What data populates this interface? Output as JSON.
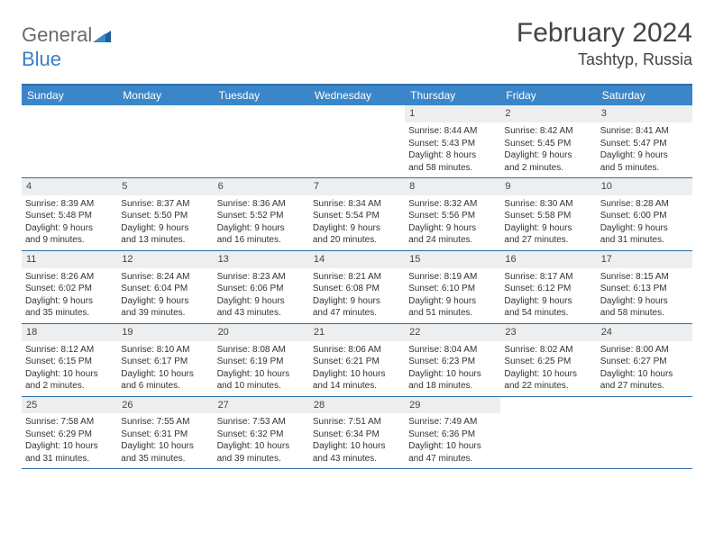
{
  "brand": {
    "name_gray": "General",
    "name_blue": "Blue"
  },
  "title": "February 2024",
  "location": "Tashtyp, Russia",
  "colors": {
    "header_bg": "#3a86c8",
    "border": "#2f6fa8",
    "daynum_bg": "#eceef0",
    "text": "#333333",
    "logo_gray": "#6a6a6a",
    "logo_blue": "#3a7fc4",
    "page_bg": "#ffffff"
  },
  "day_labels": [
    "Sunday",
    "Monday",
    "Tuesday",
    "Wednesday",
    "Thursday",
    "Friday",
    "Saturday"
  ],
  "weeks": [
    [
      {
        "empty": true
      },
      {
        "empty": true
      },
      {
        "empty": true
      },
      {
        "empty": true
      },
      {
        "n": "1",
        "sr": "Sunrise: 8:44 AM",
        "ss": "Sunset: 5:43 PM",
        "d1": "Daylight: 8 hours",
        "d2": "and 58 minutes."
      },
      {
        "n": "2",
        "sr": "Sunrise: 8:42 AM",
        "ss": "Sunset: 5:45 PM",
        "d1": "Daylight: 9 hours",
        "d2": "and 2 minutes."
      },
      {
        "n": "3",
        "sr": "Sunrise: 8:41 AM",
        "ss": "Sunset: 5:47 PM",
        "d1": "Daylight: 9 hours",
        "d2": "and 5 minutes."
      }
    ],
    [
      {
        "n": "4",
        "sr": "Sunrise: 8:39 AM",
        "ss": "Sunset: 5:48 PM",
        "d1": "Daylight: 9 hours",
        "d2": "and 9 minutes."
      },
      {
        "n": "5",
        "sr": "Sunrise: 8:37 AM",
        "ss": "Sunset: 5:50 PM",
        "d1": "Daylight: 9 hours",
        "d2": "and 13 minutes."
      },
      {
        "n": "6",
        "sr": "Sunrise: 8:36 AM",
        "ss": "Sunset: 5:52 PM",
        "d1": "Daylight: 9 hours",
        "d2": "and 16 minutes."
      },
      {
        "n": "7",
        "sr": "Sunrise: 8:34 AM",
        "ss": "Sunset: 5:54 PM",
        "d1": "Daylight: 9 hours",
        "d2": "and 20 minutes."
      },
      {
        "n": "8",
        "sr": "Sunrise: 8:32 AM",
        "ss": "Sunset: 5:56 PM",
        "d1": "Daylight: 9 hours",
        "d2": "and 24 minutes."
      },
      {
        "n": "9",
        "sr": "Sunrise: 8:30 AM",
        "ss": "Sunset: 5:58 PM",
        "d1": "Daylight: 9 hours",
        "d2": "and 27 minutes."
      },
      {
        "n": "10",
        "sr": "Sunrise: 8:28 AM",
        "ss": "Sunset: 6:00 PM",
        "d1": "Daylight: 9 hours",
        "d2": "and 31 minutes."
      }
    ],
    [
      {
        "n": "11",
        "sr": "Sunrise: 8:26 AM",
        "ss": "Sunset: 6:02 PM",
        "d1": "Daylight: 9 hours",
        "d2": "and 35 minutes."
      },
      {
        "n": "12",
        "sr": "Sunrise: 8:24 AM",
        "ss": "Sunset: 6:04 PM",
        "d1": "Daylight: 9 hours",
        "d2": "and 39 minutes."
      },
      {
        "n": "13",
        "sr": "Sunrise: 8:23 AM",
        "ss": "Sunset: 6:06 PM",
        "d1": "Daylight: 9 hours",
        "d2": "and 43 minutes."
      },
      {
        "n": "14",
        "sr": "Sunrise: 8:21 AM",
        "ss": "Sunset: 6:08 PM",
        "d1": "Daylight: 9 hours",
        "d2": "and 47 minutes."
      },
      {
        "n": "15",
        "sr": "Sunrise: 8:19 AM",
        "ss": "Sunset: 6:10 PM",
        "d1": "Daylight: 9 hours",
        "d2": "and 51 minutes."
      },
      {
        "n": "16",
        "sr": "Sunrise: 8:17 AM",
        "ss": "Sunset: 6:12 PM",
        "d1": "Daylight: 9 hours",
        "d2": "and 54 minutes."
      },
      {
        "n": "17",
        "sr": "Sunrise: 8:15 AM",
        "ss": "Sunset: 6:13 PM",
        "d1": "Daylight: 9 hours",
        "d2": "and 58 minutes."
      }
    ],
    [
      {
        "n": "18",
        "sr": "Sunrise: 8:12 AM",
        "ss": "Sunset: 6:15 PM",
        "d1": "Daylight: 10 hours",
        "d2": "and 2 minutes."
      },
      {
        "n": "19",
        "sr": "Sunrise: 8:10 AM",
        "ss": "Sunset: 6:17 PM",
        "d1": "Daylight: 10 hours",
        "d2": "and 6 minutes."
      },
      {
        "n": "20",
        "sr": "Sunrise: 8:08 AM",
        "ss": "Sunset: 6:19 PM",
        "d1": "Daylight: 10 hours",
        "d2": "and 10 minutes."
      },
      {
        "n": "21",
        "sr": "Sunrise: 8:06 AM",
        "ss": "Sunset: 6:21 PM",
        "d1": "Daylight: 10 hours",
        "d2": "and 14 minutes."
      },
      {
        "n": "22",
        "sr": "Sunrise: 8:04 AM",
        "ss": "Sunset: 6:23 PM",
        "d1": "Daylight: 10 hours",
        "d2": "and 18 minutes."
      },
      {
        "n": "23",
        "sr": "Sunrise: 8:02 AM",
        "ss": "Sunset: 6:25 PM",
        "d1": "Daylight: 10 hours",
        "d2": "and 22 minutes."
      },
      {
        "n": "24",
        "sr": "Sunrise: 8:00 AM",
        "ss": "Sunset: 6:27 PM",
        "d1": "Daylight: 10 hours",
        "d2": "and 27 minutes."
      }
    ],
    [
      {
        "n": "25",
        "sr": "Sunrise: 7:58 AM",
        "ss": "Sunset: 6:29 PM",
        "d1": "Daylight: 10 hours",
        "d2": "and 31 minutes."
      },
      {
        "n": "26",
        "sr": "Sunrise: 7:55 AM",
        "ss": "Sunset: 6:31 PM",
        "d1": "Daylight: 10 hours",
        "d2": "and 35 minutes."
      },
      {
        "n": "27",
        "sr": "Sunrise: 7:53 AM",
        "ss": "Sunset: 6:32 PM",
        "d1": "Daylight: 10 hours",
        "d2": "and 39 minutes."
      },
      {
        "n": "28",
        "sr": "Sunrise: 7:51 AM",
        "ss": "Sunset: 6:34 PM",
        "d1": "Daylight: 10 hours",
        "d2": "and 43 minutes."
      },
      {
        "n": "29",
        "sr": "Sunrise: 7:49 AM",
        "ss": "Sunset: 6:36 PM",
        "d1": "Daylight: 10 hours",
        "d2": "and 47 minutes."
      },
      {
        "empty": true
      },
      {
        "empty": true
      }
    ]
  ]
}
